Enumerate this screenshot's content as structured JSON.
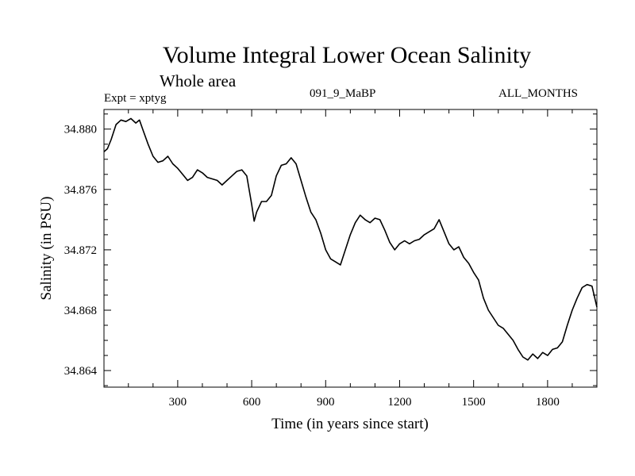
{
  "chart_data": {
    "type": "line",
    "title": "Volume Integral Lower Ocean Salinity",
    "subtitle": "Whole area",
    "annotations": {
      "experiment": "Expt = xptyg",
      "run": "091_9_MaBP",
      "months": "ALL_MONTHS"
    },
    "xlabel": "Time (in years since start)",
    "ylabel": "Salinity (in PSU)",
    "xlim": [
      1,
      2000
    ],
    "ylim": [
      34.8629,
      34.8813
    ],
    "x_ticks": [
      300,
      600,
      900,
      1200,
      1500,
      1800
    ],
    "y_ticks": [
      34.864,
      34.868,
      34.872,
      34.876,
      34.88
    ],
    "y_tick_labels": [
      "34.864",
      "34.868",
      "34.872",
      "34.876",
      "34.880"
    ],
    "grid": false,
    "line_color": "#000000",
    "series": [
      {
        "x": [
          1,
          15,
          30,
          50,
          70,
          90,
          110,
          130,
          145,
          160,
          180,
          200,
          220,
          240,
          260,
          280,
          300,
          320,
          340,
          360,
          380,
          400,
          420,
          440,
          460,
          480,
          500,
          520,
          540,
          560,
          580,
          600,
          610,
          620,
          640,
          660,
          680,
          700,
          720,
          740,
          760,
          780,
          800,
          820,
          840,
          860,
          880,
          900,
          920,
          940,
          960,
          980,
          1000,
          1020,
          1040,
          1060,
          1080,
          1100,
          1120,
          1140,
          1160,
          1180,
          1200,
          1220,
          1240,
          1260,
          1280,
          1300,
          1320,
          1340,
          1360,
          1380,
          1400,
          1420,
          1440,
          1460,
          1480,
          1500,
          1520,
          1540,
          1560,
          1580,
          1600,
          1620,
          1640,
          1660,
          1680,
          1700,
          1720,
          1740,
          1760,
          1780,
          1800,
          1820,
          1840,
          1860,
          1880,
          1900,
          1920,
          1940,
          1960,
          1980,
          2000
        ],
        "y": [
          34.8785,
          34.8787,
          34.8793,
          34.8803,
          34.8806,
          34.8805,
          34.8807,
          34.8804,
          34.8806,
          34.8799,
          34.879,
          34.8782,
          34.8778,
          34.8779,
          34.8782,
          34.8777,
          34.8774,
          34.877,
          34.8766,
          34.8768,
          34.8773,
          34.8771,
          34.8768,
          34.8767,
          34.8766,
          34.8763,
          34.8766,
          34.8769,
          34.8772,
          34.8773,
          34.8769,
          34.875,
          34.8739,
          34.8745,
          34.8752,
          34.8752,
          34.8756,
          34.8769,
          34.8776,
          34.8777,
          34.8781,
          34.8777,
          34.8766,
          34.8755,
          34.8745,
          34.874,
          34.8731,
          34.872,
          34.8714,
          34.8712,
          34.871,
          34.872,
          34.873,
          34.8738,
          34.8743,
          34.874,
          34.8738,
          34.8741,
          34.874,
          34.8733,
          34.8725,
          34.872,
          34.8724,
          34.8726,
          34.8724,
          34.8726,
          34.8727,
          34.873,
          34.8732,
          34.8734,
          34.874,
          34.8732,
          34.8724,
          34.872,
          34.8722,
          34.8715,
          34.8711,
          34.8705,
          34.87,
          34.8688,
          34.868,
          34.8675,
          34.867,
          34.8668,
          34.8664,
          34.866,
          34.8654,
          34.8649,
          34.8647,
          34.8651,
          34.8648,
          34.8652,
          34.865,
          34.8654,
          34.8655,
          34.8659,
          34.867,
          34.868,
          34.8688,
          34.8695,
          34.8697,
          34.8696,
          34.8682
        ]
      }
    ]
  }
}
